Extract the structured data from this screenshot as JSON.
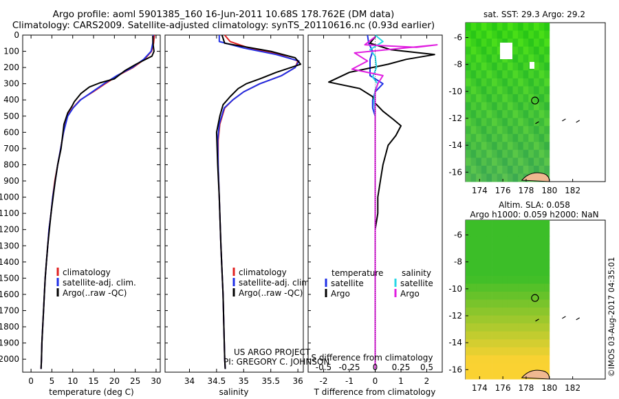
{
  "header": {
    "title_line1": "Argo profile: aoml 5901385_160 16-Jun-2011 10.68S 178.762E (DM data)",
    "title_line2": "Climatology: CARS2009. Satellite-adjusted climatology: synTS_20110616.nc (0.93d earlier)"
  },
  "colors": {
    "climatology": "#e02020",
    "satellite": "#1f2fe6",
    "argo": "#000000",
    "salinity_satellite": "#27d7e6",
    "salinity_argo": "#e01ee0"
  },
  "chart_data": [
    {
      "type": "line",
      "name": "temperature-panel",
      "xlabel": "temperature (deg C)",
      "ylabel": "",
      "xlim": [
        -2,
        31
      ],
      "ylim": [
        2080,
        0
      ],
      "xticks": [
        0,
        5,
        10,
        15,
        20,
        25,
        30
      ],
      "yticks": [
        0,
        100,
        200,
        300,
        400,
        500,
        600,
        700,
        800,
        900,
        1000,
        1100,
        1200,
        1300,
        1400,
        1500,
        1600,
        1700,
        1800,
        1900,
        2000
      ],
      "legend": [
        "climatology",
        "satellite-adj. clim.",
        "Argo(..raw -QC)"
      ],
      "legend_position": "lower-center",
      "series": [
        {
          "name": "climatology",
          "points": [
            [
              29.6,
              0
            ],
            [
              29.4,
              50
            ],
            [
              28.9,
              100
            ],
            [
              27.2,
              150
            ],
            [
              24.5,
              200
            ],
            [
              20.8,
              250
            ],
            [
              17.8,
              300
            ],
            [
              14.9,
              350
            ],
            [
              11.8,
              400
            ],
            [
              10.0,
              450
            ],
            [
              8.7,
              500
            ],
            [
              7.8,
              600
            ],
            [
              7.1,
              700
            ],
            [
              6.4,
              800
            ],
            [
              5.7,
              900
            ],
            [
              5.2,
              1000
            ],
            [
              4.8,
              1100
            ],
            [
              4.3,
              1200
            ],
            [
              4.0,
              1300
            ],
            [
              3.7,
              1400
            ],
            [
              3.4,
              1500
            ],
            [
              3.2,
              1600
            ],
            [
              3.0,
              1700
            ],
            [
              2.8,
              1800
            ],
            [
              2.6,
              1900
            ],
            [
              2.5,
              2000
            ],
            [
              2.4,
              2060
            ]
          ]
        },
        {
          "name": "satellite-adj. clim.",
          "points": [
            [
              29.3,
              0
            ],
            [
              29.2,
              50
            ],
            [
              28.8,
              100
            ],
            [
              27.0,
              150
            ],
            [
              24.3,
              200
            ],
            [
              20.6,
              250
            ],
            [
              17.5,
              300
            ],
            [
              14.7,
              350
            ],
            [
              11.9,
              400
            ],
            [
              10.1,
              450
            ],
            [
              8.8,
              500
            ],
            [
              7.8,
              600
            ],
            [
              7.1,
              700
            ],
            [
              6.4,
              800
            ],
            [
              5.8,
              900
            ],
            [
              5.2,
              1000
            ],
            [
              4.8,
              1100
            ],
            [
              4.3,
              1200
            ],
            [
              4.0,
              1300
            ],
            [
              3.7,
              1400
            ],
            [
              3.4,
              1500
            ],
            [
              3.2,
              1600
            ],
            [
              3.0,
              1700
            ],
            [
              2.8,
              1800
            ],
            [
              2.6,
              1900
            ],
            [
              2.5,
              2000
            ],
            [
              2.4,
              2060
            ]
          ]
        },
        {
          "name": "Argo(..raw -QC)",
          "points": [
            [
              29.2,
              5
            ],
            [
              29.3,
              60
            ],
            [
              29.5,
              100
            ],
            [
              29.0,
              130
            ],
            [
              25.2,
              180
            ],
            [
              22.5,
              220
            ],
            [
              20.0,
              270
            ],
            [
              16.5,
              295
            ],
            [
              14.0,
              320
            ],
            [
              12.0,
              360
            ],
            [
              10.4,
              410
            ],
            [
              9.8,
              440
            ],
            [
              8.8,
              480
            ],
            [
              7.9,
              550
            ],
            [
              7.2,
              700
            ],
            [
              6.4,
              800
            ],
            [
              5.8,
              900
            ],
            [
              5.3,
              1000
            ],
            [
              4.8,
              1100
            ],
            [
              4.4,
              1200
            ],
            [
              4.0,
              1300
            ],
            [
              3.7,
              1400
            ],
            [
              3.4,
              1500
            ],
            [
              3.2,
              1600
            ],
            [
              3.0,
              1700
            ],
            [
              2.8,
              1800
            ],
            [
              2.6,
              1900
            ],
            [
              2.5,
              2000
            ],
            [
              2.4,
              2060
            ]
          ]
        }
      ]
    },
    {
      "type": "line",
      "name": "salinity-panel",
      "xlabel": "salinity",
      "ylabel": "",
      "xlim": [
        33.55,
        36.1
      ],
      "ylim": [
        2080,
        0
      ],
      "xticks": [
        34,
        34.5,
        35,
        35.5,
        36
      ],
      "legend": [
        "climatology",
        "satellite-adj. clim.",
        "Argo(..raw -QC)"
      ],
      "legend_position": "lower-center",
      "series": [
        {
          "name": "climatology",
          "points": [
            [
              34.65,
              0
            ],
            [
              34.75,
              40
            ],
            [
              35.1,
              80
            ],
            [
              35.65,
              120
            ],
            [
              36.0,
              160
            ],
            [
              35.95,
              200
            ],
            [
              35.7,
              250
            ],
            [
              35.3,
              300
            ],
            [
              35.0,
              350
            ],
            [
              34.8,
              400
            ],
            [
              34.65,
              450
            ],
            [
              34.56,
              550
            ],
            [
              34.53,
              650
            ],
            [
              34.53,
              800
            ],
            [
              34.55,
              1000
            ],
            [
              34.58,
              1300
            ],
            [
              34.62,
              1600
            ],
            [
              34.65,
              2000
            ],
            [
              34.66,
              2060
            ]
          ]
        },
        {
          "name": "satellite-adj. clim.",
          "points": [
            [
              34.55,
              0
            ],
            [
              34.55,
              40
            ],
            [
              35.0,
              80
            ],
            [
              35.6,
              120
            ],
            [
              36.02,
              160
            ],
            [
              35.95,
              200
            ],
            [
              35.7,
              250
            ],
            [
              35.3,
              300
            ],
            [
              35.0,
              350
            ],
            [
              34.8,
              400
            ],
            [
              34.64,
              450
            ],
            [
              34.55,
              550
            ],
            [
              34.52,
              650
            ],
            [
              34.53,
              800
            ],
            [
              34.55,
              1000
            ],
            [
              34.58,
              1300
            ],
            [
              34.62,
              1600
            ],
            [
              34.65,
              2000
            ],
            [
              34.66,
              2060
            ]
          ]
        },
        {
          "name": "Argo(..raw -QC)",
          "points": [
            [
              34.6,
              0
            ],
            [
              34.65,
              50
            ],
            [
              35.5,
              100
            ],
            [
              35.95,
              140
            ],
            [
              36.05,
              180
            ],
            [
              35.6,
              230
            ],
            [
              35.3,
              270
            ],
            [
              35.05,
              300
            ],
            [
              34.9,
              330
            ],
            [
              34.75,
              380
            ],
            [
              34.62,
              430
            ],
            [
              34.56,
              500
            ],
            [
              34.5,
              600
            ],
            [
              34.52,
              800
            ],
            [
              34.55,
              1000
            ],
            [
              34.58,
              1300
            ],
            [
              34.62,
              1600
            ],
            [
              34.65,
              2000
            ],
            [
              34.66,
              2060
            ]
          ]
        }
      ]
    },
    {
      "type": "line",
      "name": "difference-panel",
      "xlabel": "T difference from climatology",
      "xlabel2": "S difference from climatology",
      "ylabel": "",
      "xlim": [
        -2.6,
        2.6
      ],
      "ylim": [
        2080,
        0
      ],
      "xticks": [
        -2,
        -1,
        0,
        1,
        2
      ],
      "xticks2_labels": [
        "-0.5",
        "-0.25",
        "0",
        "0.25",
        "0.5"
      ],
      "legend_temperature_heading": "temperature",
      "legend_salinity_heading": "salinity",
      "legend_labels": [
        "satellite",
        "Argo"
      ],
      "legend_position": "lower-center",
      "series": [
        {
          "name": "temperature satellite",
          "points": [
            [
              -0.3,
              0
            ],
            [
              -0.25,
              50
            ],
            [
              -0.1,
              100
            ],
            [
              -0.2,
              150
            ],
            [
              -0.2,
              200
            ],
            [
              -0.2,
              250
            ],
            [
              0.3,
              300
            ],
            [
              0.0,
              350
            ],
            [
              -0.1,
              400
            ],
            [
              -0.1,
              450
            ],
            [
              0.0,
              500
            ],
            [
              0.0,
              600
            ],
            [
              0.0,
              800
            ],
            [
              0.0,
              1000
            ],
            [
              0.0,
              1500
            ],
            [
              0.0,
              2060
            ]
          ]
        },
        {
          "name": "temperature Argo",
          "points": [
            [
              0.0,
              10
            ],
            [
              -0.2,
              50
            ],
            [
              0.6,
              90
            ],
            [
              2.3,
              120
            ],
            [
              1.2,
              150
            ],
            [
              0.5,
              180
            ],
            [
              -1.0,
              230
            ],
            [
              -1.8,
              290
            ],
            [
              -0.6,
              330
            ],
            [
              -0.1,
              380
            ],
            [
              0.0,
              420
            ],
            [
              0.3,
              470
            ],
            [
              0.7,
              520
            ],
            [
              1.0,
              560
            ],
            [
              0.8,
              620
            ],
            [
              0.5,
              680
            ],
            [
              0.3,
              800
            ],
            [
              0.2,
              900
            ],
            [
              0.1,
              1000
            ],
            [
              0.1,
              1100
            ],
            [
              0.0,
              1200
            ],
            [
              0.0,
              1500
            ],
            [
              0.0,
              2060
            ]
          ]
        },
        {
          "name": "salinity satellite",
          "points": [
            [
              0.0,
              0
            ],
            [
              0.3,
              40
            ],
            [
              -0.2,
              90
            ],
            [
              0.0,
              130
            ],
            [
              0.05,
              200
            ],
            [
              -0.1,
              260
            ],
            [
              0.1,
              300
            ],
            [
              0.0,
              340
            ],
            [
              -0.05,
              400
            ],
            [
              0.0,
              500
            ],
            [
              0.0,
              2060
            ]
          ]
        },
        {
          "name": "salinity Argo",
          "points": [
            [
              0.0,
              10
            ],
            [
              -0.4,
              60
            ],
            [
              1.6,
              75
            ],
            [
              2.4,
              60
            ],
            [
              -0.8,
              110
            ],
            [
              -0.3,
              160
            ],
            [
              -0.9,
              210
            ],
            [
              0.3,
              250
            ],
            [
              0.1,
              300
            ],
            [
              0.0,
              350
            ],
            [
              0.0,
              2060
            ]
          ]
        }
      ]
    },
    {
      "type": "heatmap",
      "name": "sst-map",
      "title": "sat. SST: 29.3 Argo: 29.2",
      "xticks": [
        174,
        176,
        178,
        180,
        182
      ],
      "yticks": [
        -6,
        -8,
        -10,
        -12,
        -14,
        -16
      ],
      "marker": [
        178.762,
        -10.68
      ]
    },
    {
      "type": "heatmap",
      "name": "sla-map",
      "title": "Altim. SLA: 0.058",
      "subtitle": "Argo h1000: 0.059 h2000: NaN",
      "xticks": [
        174,
        176,
        178,
        180,
        182
      ],
      "yticks": [
        -6,
        -8,
        -10,
        -12,
        -14,
        -16
      ],
      "marker": [
        178.762,
        -10.68
      ]
    }
  ],
  "annotation": {
    "project_line1": "US ARGO PROJECT",
    "project_line2": "PI: GREGORY C. JOHNSON"
  },
  "footer": {
    "imos_stamp": "©IMOS 03-Aug-2017 04:35:01"
  }
}
